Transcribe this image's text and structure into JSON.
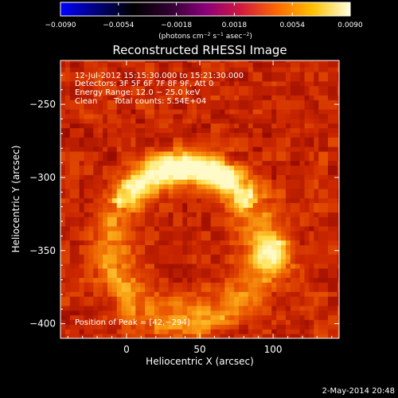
{
  "chart_data": {
    "type": "heatmap",
    "title": "Reconstructed RHESSI Image",
    "xlabel": "Heliocentric X (arcsec)",
    "ylabel": "Heliocentric Y (arcsec)",
    "xlim": [
      -45,
      145
    ],
    "ylim": [
      -410,
      -220
    ],
    "xticks": [
      0,
      50,
      100
    ],
    "xtick_labels": [
      "0",
      "50",
      "100"
    ],
    "yticks": [
      -250,
      -300,
      -350,
      -400
    ],
    "ytick_labels": [
      "−250",
      "−300",
      "−350",
      "−400"
    ],
    "colorbar": {
      "colormap": "red-temperature",
      "range": [
        -0.009,
        0.009
      ],
      "ticks": [
        -0.009,
        -0.0054,
        -0.0018,
        0.0018,
        0.0054,
        0.009
      ],
      "tick_labels": [
        "−0.0090",
        "−0.0054",
        "−0.0018",
        "0.0018",
        "0.0054",
        "0.0090"
      ],
      "unit_parts": [
        "(photons cm",
        "−2",
        " s",
        "−1",
        " asec",
        "−2",
        ")"
      ]
    },
    "annotations": {
      "time_range": "12-Jul-2012 15:15:30.000 to 15:21:30.000",
      "detectors": "Detectors: 3F 5F 6F 7F 8F 9F, Att 0",
      "energy_range": "Energy Range: 12.0 − 25.0 keV",
      "clean_label": "Clean",
      "total_counts": "Total counts: 5.54E+04",
      "peak_position": "Position of Peak = [42,−294]"
    },
    "peak": {
      "x": 42,
      "y": -294
    },
    "loop_features": {
      "description_units": "arcsec",
      "arc_center": [
        40,
        -345
      ],
      "arc_radius": 52,
      "arc_start_deg": 150,
      "arc_end_deg": 30,
      "footpoint_blob": [
        100,
        -352
      ]
    },
    "timestamp": "2-May-2014 20:48"
  }
}
